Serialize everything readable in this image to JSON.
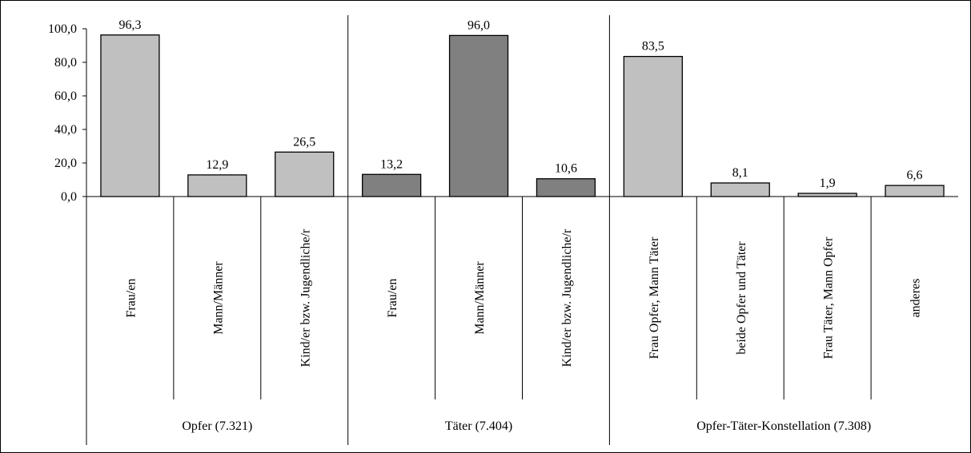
{
  "chart_data": {
    "type": "bar",
    "ylim": [
      0,
      100
    ],
    "yticks": [
      "0,0",
      "20,0",
      "40,0",
      "60,0",
      "80,0",
      "100,0"
    ],
    "grid": false,
    "colors": {
      "light": "#c0c0c0",
      "dark": "#808080",
      "axis": "#000000"
    },
    "groups": [
      {
        "label": "Opfer (7.321)",
        "fill": "#c0c0c0",
        "bars": [
          {
            "category": "Frau/en",
            "value": 96.3,
            "label": "96,3"
          },
          {
            "category": "Mann/Männer",
            "value": 12.9,
            "label": "12,9"
          },
          {
            "category": "Kind/er bzw. Jugendliche/r",
            "value": 26.5,
            "label": "26,5"
          }
        ]
      },
      {
        "label": "Täter (7.404)",
        "fill": "#808080",
        "bars": [
          {
            "category": "Frau/en",
            "value": 13.2,
            "label": "13,2"
          },
          {
            "category": "Mann/Männer",
            "value": 96.0,
            "label": "96,0"
          },
          {
            "category": "Kind/er bzw. Jugendliche/r",
            "value": 10.6,
            "label": "10,6"
          }
        ]
      },
      {
        "label": "Opfer-Täter-Konstellation (7.308)",
        "fill": "#c0c0c0",
        "bars": [
          {
            "category": "Frau Opfer, Mann Täter",
            "value": 83.5,
            "label": "83,5"
          },
          {
            "category": "beide Opfer und Täter",
            "value": 8.1,
            "label": "8,1"
          },
          {
            "category": "Frau Täter, Mann Opfer",
            "value": 1.9,
            "label": "1,9"
          },
          {
            "category": "anderes",
            "value": 6.6,
            "label": "6,6"
          }
        ]
      }
    ]
  }
}
